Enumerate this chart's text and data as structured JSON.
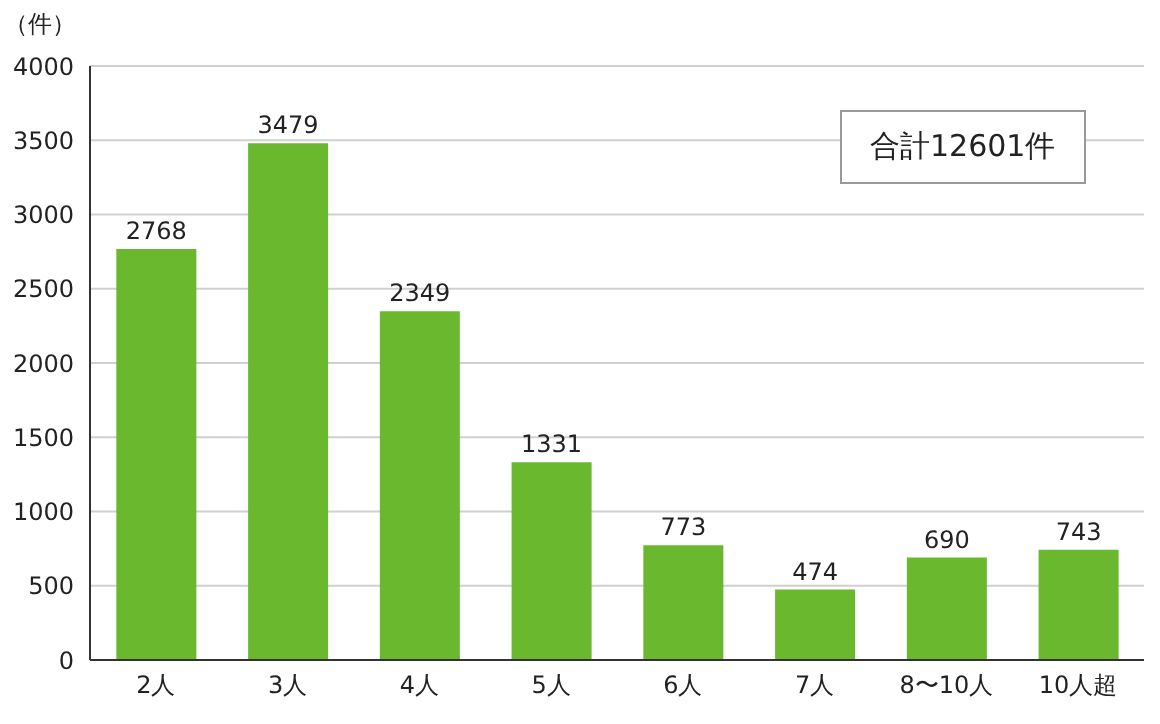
{
  "chart_data": {
    "type": "bar",
    "ylabel": "（件）",
    "annotations": [
      "合計12601件"
    ],
    "categories": [
      "2人",
      "3人",
      "4人",
      "5人",
      "6人",
      "7人",
      "8〜10人",
      "10人超"
    ],
    "values": [
      2768,
      3479,
      2349,
      1331,
      773,
      474,
      690,
      743
    ],
    "color": "#6ab82e",
    "ylim": [
      0,
      4000
    ],
    "yticks": [
      0,
      500,
      1000,
      1500,
      2000,
      2500,
      3000,
      3500,
      4000
    ],
    "grid": "y",
    "data_labels": true
  }
}
